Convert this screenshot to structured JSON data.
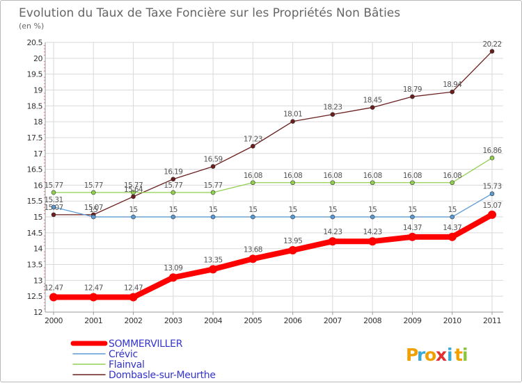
{
  "chart_data": {
    "type": "line",
    "title": "Evolution du Taux de Taxe Foncière sur les Propriétés Non Bâties",
    "ylabel": "(en %)",
    "xlabel": "",
    "x": [
      "2000",
      "2001",
      "2002",
      "2003",
      "2004",
      "2005",
      "2006",
      "2007",
      "2008",
      "2009",
      "2010",
      "2011"
    ],
    "ylim": [
      12,
      20.5
    ],
    "yticks": [
      12,
      12.5,
      13,
      13.5,
      14,
      14.5,
      15,
      15.5,
      16,
      16.5,
      17,
      17.5,
      18,
      18.5,
      19,
      19.5,
      20,
      20.5
    ],
    "ytick_labels": [
      "12",
      "12.5",
      "13",
      "13.5",
      "14",
      "14.5",
      "15",
      "15.5",
      "16",
      "16.5",
      "17",
      "17.5",
      "18",
      "18.5",
      "19",
      "19.5",
      "20",
      "20.5"
    ],
    "grid": true,
    "series": [
      {
        "name": "SOMMERVILLER",
        "color": "#ff0000",
        "emphasis": true,
        "values": [
          12.47,
          12.47,
          12.47,
          13.09,
          13.35,
          13.68,
          13.95,
          14.23,
          14.23,
          14.37,
          14.37,
          15.07
        ],
        "labels": [
          "12.47",
          "12.47",
          "12.47",
          "13.09",
          "13.35",
          "13.68",
          "13.95",
          "14.23",
          "14.23",
          "14.37",
          "14.37",
          "15.07"
        ]
      },
      {
        "name": "Crévic",
        "color": "#5b9bd5",
        "emphasis": false,
        "values": [
          15.31,
          15,
          15,
          15,
          15,
          15,
          15,
          15,
          15,
          15,
          15,
          15.73
        ],
        "labels": [
          "15.31",
          "15",
          "15",
          "15",
          "15",
          "15",
          "15",
          "15",
          "15",
          "15",
          "15",
          "15.73"
        ]
      },
      {
        "name": "Flainval",
        "color": "#92d050",
        "emphasis": false,
        "values": [
          15.77,
          15.77,
          15.77,
          15.77,
          15.77,
          16.08,
          16.08,
          16.08,
          16.08,
          16.08,
          16.08,
          16.86
        ],
        "labels": [
          "15.77",
          "15.77",
          "15.77",
          "15.77",
          "15.77",
          "16.08",
          "16.08",
          "16.08",
          "16.08",
          "16.08",
          "16.08",
          "16.86"
        ]
      },
      {
        "name": "Dombasle-sur-Meurthe",
        "color": "#6b1e1e",
        "emphasis": false,
        "values": [
          15.07,
          15.07,
          15.64,
          16.19,
          16.59,
          17.23,
          18.01,
          18.23,
          18.45,
          18.79,
          18.94,
          20.22
        ],
        "labels": [
          "15.07",
          "15.07",
          "15.64",
          "16.19",
          "16.59",
          "17.23",
          "18.01",
          "18.23",
          "18.45",
          "18.79",
          "18.94",
          "20.22"
        ]
      }
    ],
    "legend": {
      "position": "bottom-left",
      "text_color": "#3333cc",
      "entries": [
        "SOMMERVILLER",
        "Crévic",
        "Flainval",
        "Dombasle-sur-Meurthe"
      ]
    }
  },
  "logo": {
    "letters": [
      "P",
      "r",
      "o",
      "x",
      "i",
      "t",
      "i"
    ],
    "colors": [
      "#f0a000",
      "#3aa8d8",
      "#f0a000",
      "#e03030",
      "#3aa8d8",
      "#f0a000",
      "#8cc63f"
    ]
  }
}
